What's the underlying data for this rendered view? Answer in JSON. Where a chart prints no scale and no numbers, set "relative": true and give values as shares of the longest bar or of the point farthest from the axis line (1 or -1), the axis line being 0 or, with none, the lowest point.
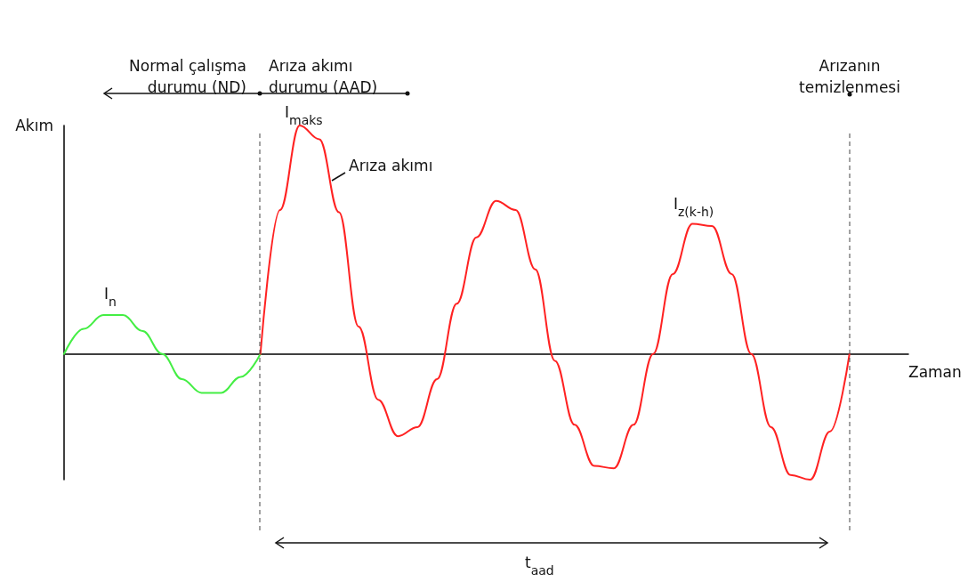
{
  "chart_data": {
    "type": "line",
    "relative": true,
    "xlabel": "Zaman",
    "ylabel": "Akım",
    "marker": "none",
    "line_style": "solid",
    "categories": [
      null,
      null,
      null,
      null,
      null,
      null,
      null,
      null,
      null,
      null,
      null,
      null,
      null,
      null,
      null,
      null,
      null,
      null,
      null,
      null,
      null,
      null,
      null,
      null,
      null,
      null,
      null,
      null,
      null,
      null,
      null,
      null,
      null,
      null,
      null,
      null,
      null,
      null,
      null,
      null,
      null,
      null,
      null,
      null
    ],
    "series": [
      {
        "color": "#44ee44",
        "values": [
          0,
          0.11,
          0.17,
          0.17,
          0.1,
          0,
          -0.11,
          -0.17,
          -0.17,
          -0.1,
          0,
          null,
          null,
          null,
          null,
          null,
          null,
          null,
          null,
          null,
          null,
          null,
          null,
          null,
          null,
          null,
          null,
          null,
          null,
          null,
          null,
          null,
          null,
          null,
          null,
          null,
          null,
          null,
          null,
          null,
          null,
          null,
          null,
          null
        ]
      },
      {
        "color": "#ff2222",
        "values": [
          null,
          null,
          null,
          null,
          null,
          null,
          null,
          null,
          null,
          null,
          0,
          0.63,
          1,
          0.94,
          0.62,
          0.12,
          -0.2,
          -0.36,
          -0.32,
          -0.11,
          0.22,
          0.51,
          0.67,
          0.63,
          0.37,
          -0.03,
          -0.31,
          -0.49,
          -0.5,
          -0.31,
          0,
          0.35,
          0.57,
          0.56,
          0.35,
          0,
          -0.32,
          -0.53,
          -0.55,
          -0.34,
          0,
          null,
          null,
          null
        ]
      }
    ],
    "annotations": [
      "Normal çalışma\ndurumu (ND)",
      "Arıza akımı\ndurumu (AAD)",
      "Arızanın\ntemizlenmesi",
      "I$_{maks}$",
      "Arıza akımı",
      "I$_{n}$",
      "I$_{z(k-h)}$",
      "t$_{aad}$"
    ]
  }
}
